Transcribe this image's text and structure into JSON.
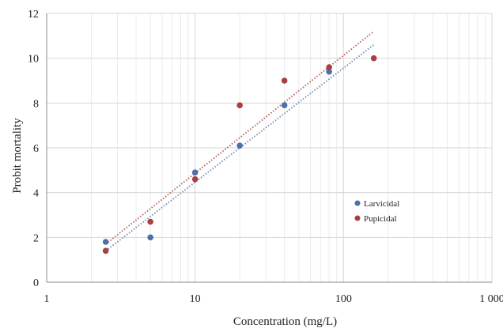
{
  "chart_data": {
    "type": "scatter",
    "title": "",
    "xlabel": "Concentration (mg/L)",
    "ylabel": "Probit mortality",
    "xscale": "log",
    "xlim": [
      1,
      1000
    ],
    "ylim": [
      0,
      12
    ],
    "x_ticks": [
      1,
      10,
      100,
      1000
    ],
    "x_tick_labels": [
      "1",
      "10",
      "100",
      "1 000"
    ],
    "y_ticks": [
      0,
      2,
      4,
      6,
      8,
      10,
      12
    ],
    "y_tick_labels": [
      "0",
      "2",
      "4",
      "6",
      "8",
      "10",
      "12"
    ],
    "grid": true,
    "legend_position": "right",
    "series": [
      {
        "name": "Larvicidal",
        "color": "#4a72a8",
        "points": [
          {
            "x": 2.5,
            "y": 1.8
          },
          {
            "x": 5,
            "y": 2.0
          },
          {
            "x": 10,
            "y": 4.9
          },
          {
            "x": 20,
            "y": 6.1
          },
          {
            "x": 40,
            "y": 7.9
          },
          {
            "x": 80,
            "y": 9.4
          }
        ],
        "trendline": {
          "x": [
            2.5,
            160
          ],
          "y": [
            1.4,
            10.6
          ],
          "color": "#7b93b8"
        }
      },
      {
        "name": "Pupicidal",
        "color": "#a8403e",
        "points": [
          {
            "x": 2.5,
            "y": 1.4
          },
          {
            "x": 5,
            "y": 2.7
          },
          {
            "x": 10,
            "y": 4.6
          },
          {
            "x": 20,
            "y": 7.9
          },
          {
            "x": 40,
            "y": 9.0
          },
          {
            "x": 80,
            "y": 9.6
          },
          {
            "x": 160,
            "y": 10.0
          }
        ],
        "trendline": {
          "x": [
            2.5,
            160
          ],
          "y": [
            1.7,
            11.2
          ],
          "color": "#b86a68"
        }
      }
    ]
  }
}
